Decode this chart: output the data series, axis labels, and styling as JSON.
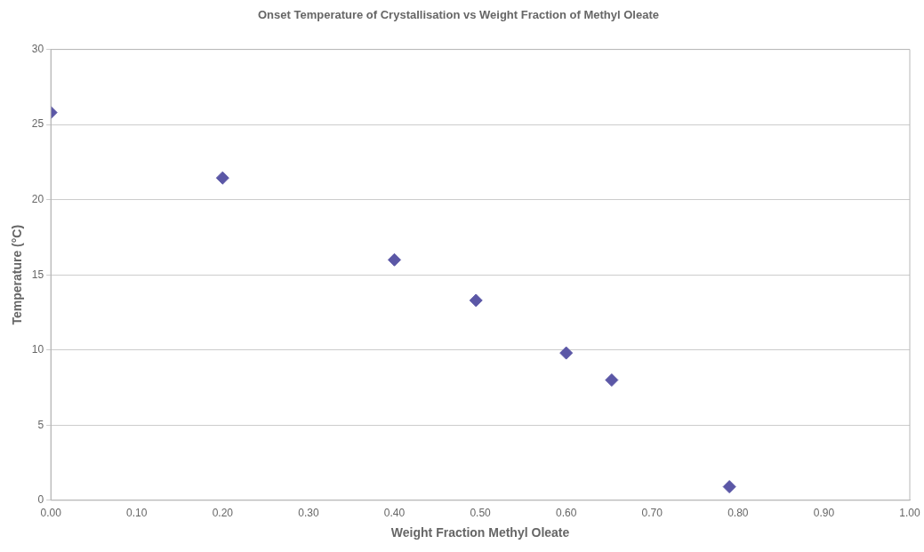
{
  "chart_data": {
    "type": "scatter",
    "title": "Onset Temperature of Crystallisation vs Weight Fraction of Methyl Oleate",
    "xlabel": "Weight Fraction Methyl Oleate",
    "ylabel": "Temperature (°C)",
    "x": [
      0.0,
      0.2,
      0.4,
      0.495,
      0.6,
      0.653,
      0.79
    ],
    "series": [
      {
        "color": "#5b57a6",
        "values": [
          25.8,
          21.45,
          16.0,
          13.3,
          9.8,
          8.0,
          0.9
        ]
      }
    ],
    "xlim": [
      0,
      1
    ],
    "xticks": [
      {
        "value": 0,
        "label": "0.00"
      },
      {
        "value": 0.1,
        "label": "0.10"
      },
      {
        "value": 0.2,
        "label": "0.20"
      },
      {
        "value": 0.3,
        "label": "0.30"
      },
      {
        "value": 0.4,
        "label": "0.40"
      },
      {
        "value": 0.5,
        "label": "0.50"
      },
      {
        "value": 0.6,
        "label": "0.60"
      },
      {
        "value": 0.7,
        "label": "0.70"
      },
      {
        "value": 0.8,
        "label": "0.80"
      },
      {
        "value": 0.9,
        "label": "0.90"
      },
      {
        "value": 1,
        "label": "1.00"
      }
    ],
    "ylim": [
      0,
      30
    ],
    "yticks": [
      0,
      5,
      10,
      15,
      20,
      25,
      30
    ],
    "grid": "y",
    "marker": "diamond",
    "legend": false
  }
}
